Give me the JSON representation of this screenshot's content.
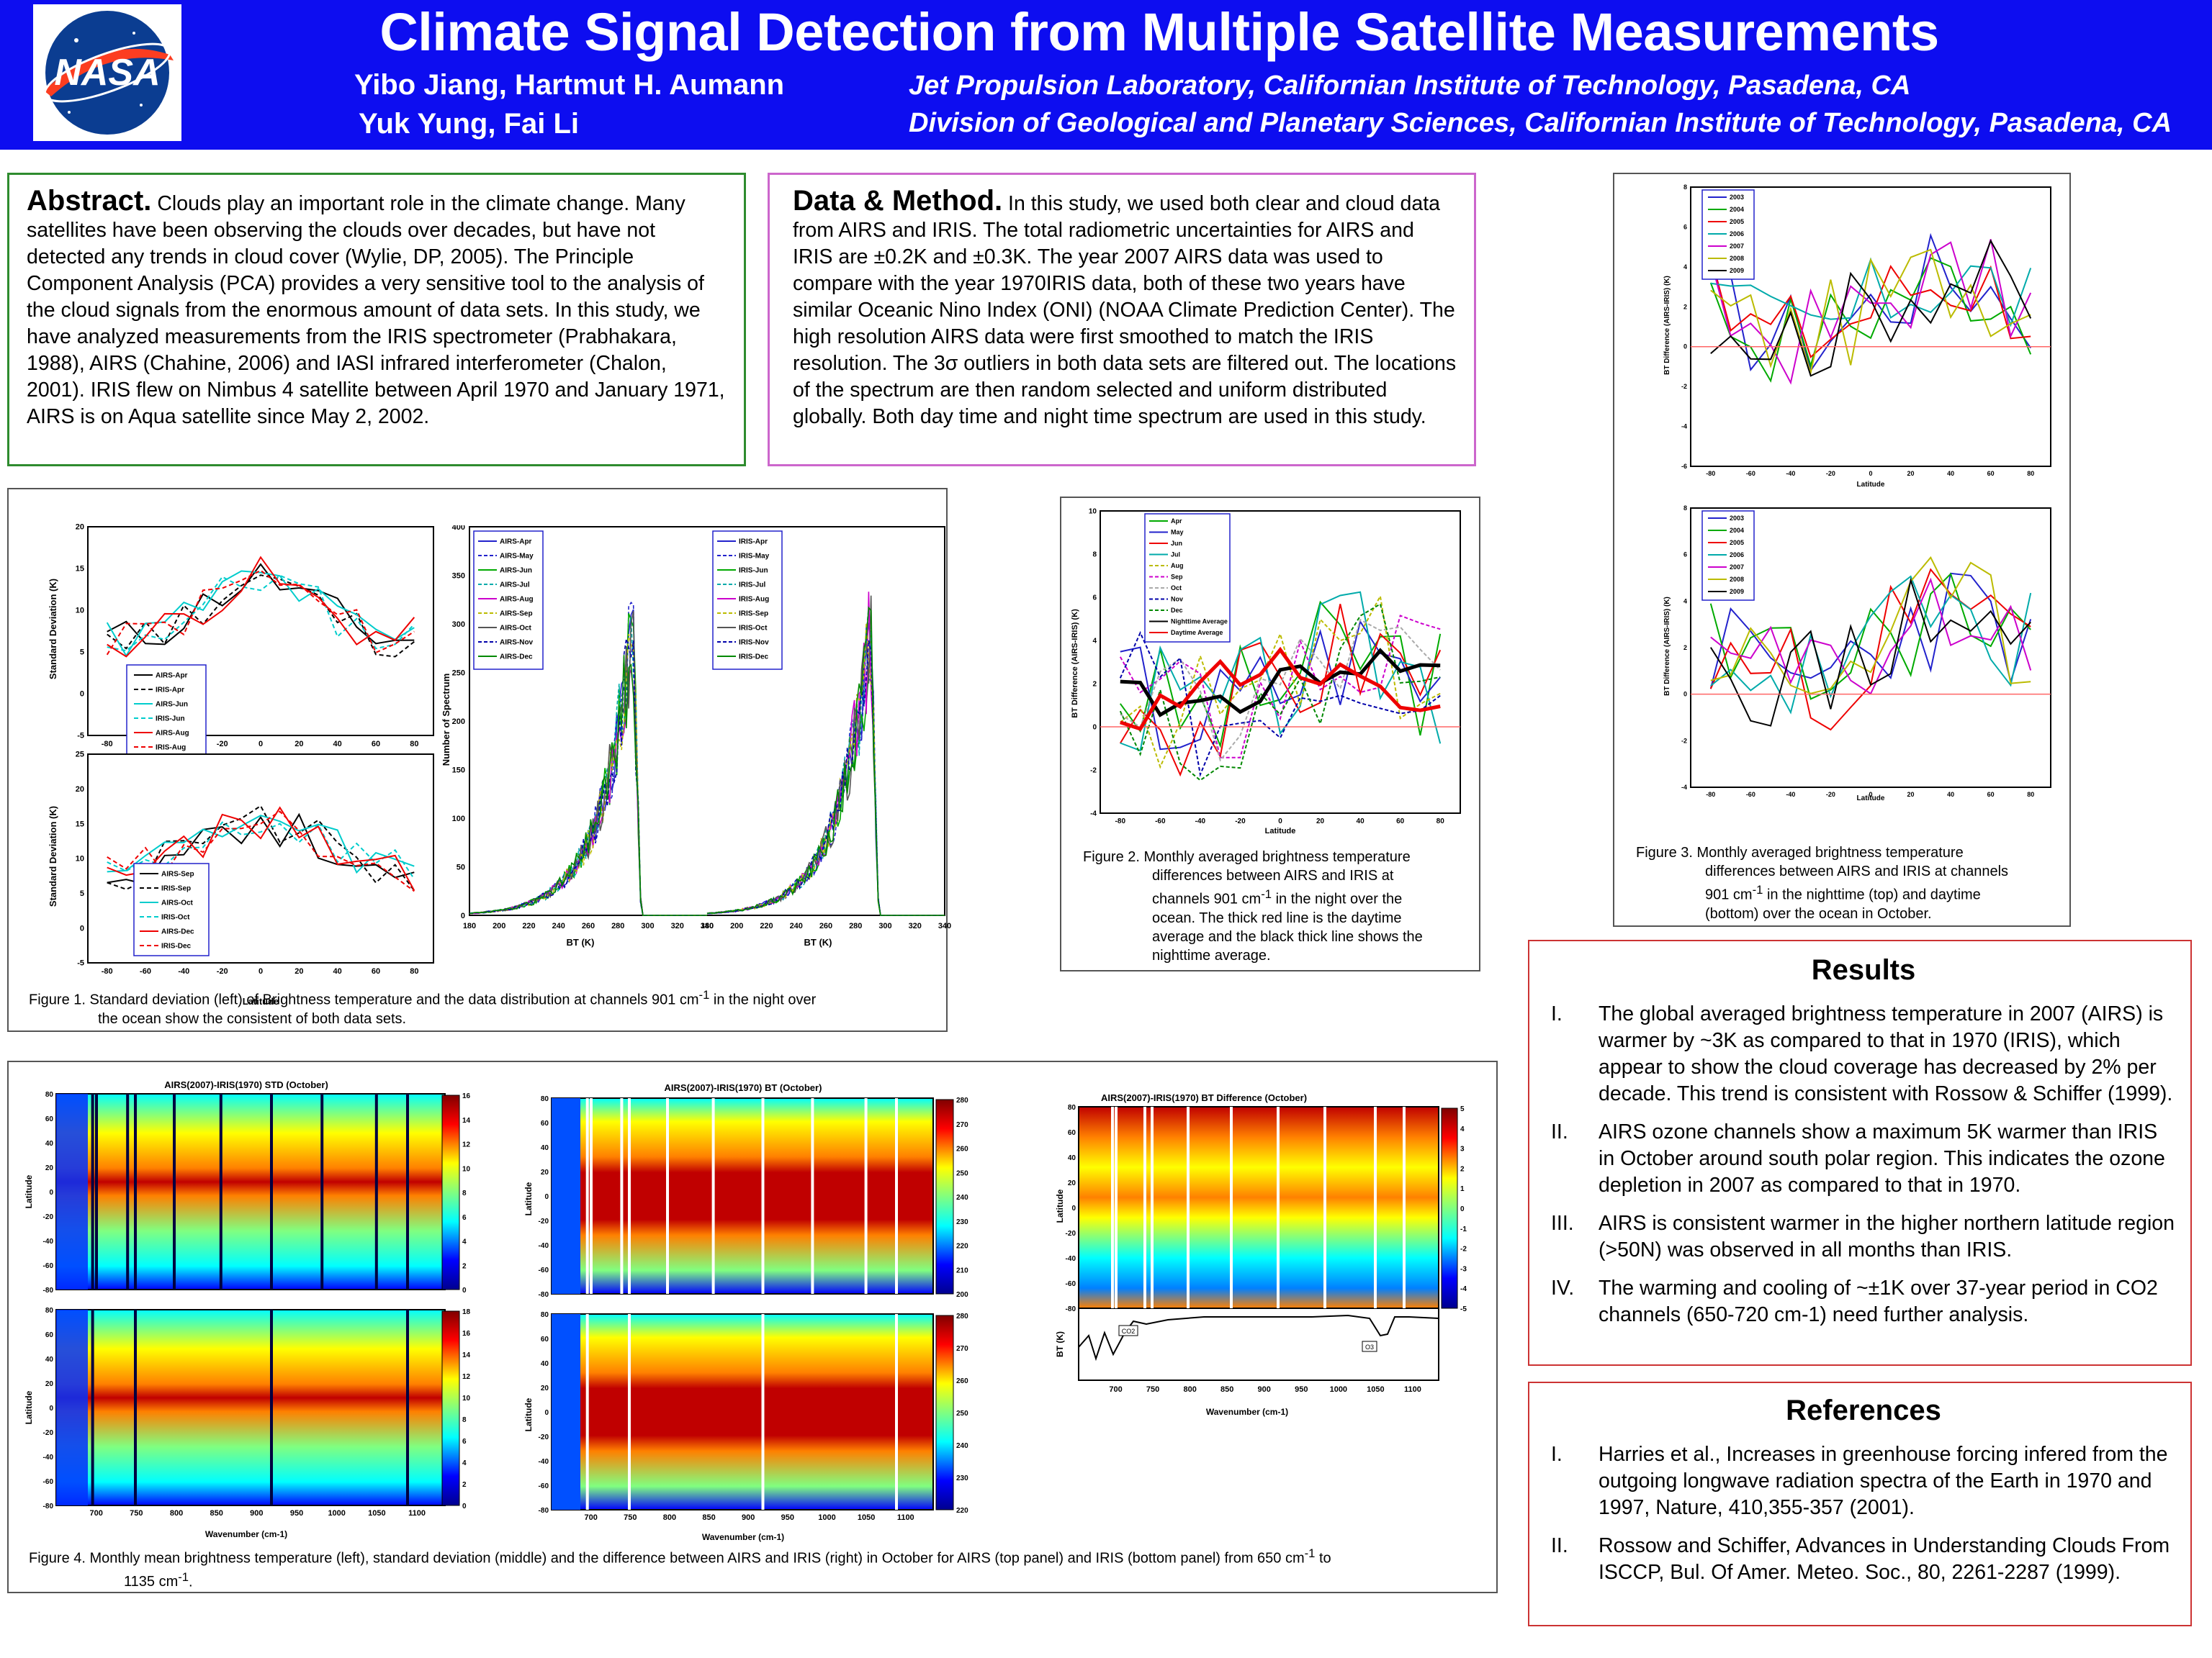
{
  "header": {
    "title": "Climate Signal Detection from Multiple Satellite Measurements",
    "authors_line1": "Yibo Jiang, Hartmut H. Aumann",
    "authors_line2": "Yuk Yung, Fai Li",
    "affiliation_line1": "Jet Propulsion Laboratory, Californian Institute of Technology, Pasadena, CA",
    "affiliation_line2": "Division of Geological and Planetary Sciences, Californian Institute of Technology, Pasadena, CA",
    "logo_text": "NASA"
  },
  "abstract": {
    "heading": "Abstract.",
    "text": "Clouds play an important role in the climate change. Many satellites have been observing the clouds over decades, but have not detected any trends in cloud cover (Wylie, DP, 2005). The Principle Component Analysis (PCA) provides a very sensitive tool to the analysis of the cloud signals from the enormous amount of data sets. In this study, we have analyzed measurements from the IRIS spectrometer (Prabhakara, 1988), AIRS (Chahine, 2006) and IASI infrared interferometer (Chalon, 2001). IRIS flew on Nimbus 4 satellite between April 1970 and January 1971, AIRS is on Aqua satellite since May 2, 2002."
  },
  "data_method": {
    "heading": "Data & Method.",
    "text": "In this study, we used both clear and cloud data from AIRS and IRIS. The total radiometric uncertainties for AIRS and IRIS are ±0.2K and ±0.3K. The year 2007 AIRS data was used to compare with the year 1970IRIS data, both of these two years have similar Oceanic Nino Index (ONI) (NOAA Climate Prediction Center). The high resolution AIRS data were first smoothed to match the IRIS resolution. The 3σ outliers in both data sets are filtered out. The locations of the spectrum are then random selected and uniform distributed globally. Both day time and night time spectrum are used in this study."
  },
  "figure1": {
    "caption_a": "Figure 1. Standard deviation (left) of Brightness temperature and the data distribution at channels 901 cm",
    "caption_sup": "-1",
    "caption_b": " in the night over",
    "caption_c": "the ocean show the consistent of both data sets.",
    "sd_ylabel": "Standard Deviation (K)",
    "lat_xlabel": "Latitude",
    "legend_top": [
      "AIRS-Apr",
      "IRIS-Apr",
      "AIRS-Jun",
      "IRIS-Jun",
      "AIRS-Aug",
      "IRIS-Aug"
    ],
    "legend_bottom": [
      "AIRS-Sep",
      "IRIS-Sep",
      "AIRS-Oct",
      "IRIS-Oct",
      "AIRS-Dec",
      "IRIS-Dec"
    ],
    "hist_ylabel": "Number of Spectrum",
    "hist_xlabel": "BT (K)",
    "legend_airs": [
      "AIRS-Apr",
      "AIRS-May",
      "AIRS-Jun",
      "AIRS-Jul",
      "AIRS-Aug",
      "AIRS-Sep",
      "AIRS-Oct",
      "AIRS-Nov",
      "AIRS-Dec"
    ],
    "legend_iris": [
      "IRIS-Apr",
      "IRIS-May",
      "IRIS-Jun",
      "IRIS-Jul",
      "IRIS-Aug",
      "IRIS-Sep",
      "IRIS-Oct",
      "IRIS-Nov",
      "IRIS-Dec"
    ]
  },
  "figure2": {
    "caption_a": "Figure 2. Monthly averaged brightness temperature",
    "caption_b": "differences between AIRS and IRIS at",
    "caption_c": "channels 901 cm",
    "caption_c2": " in the night over the",
    "caption_d": "ocean. The thick red line is the daytime",
    "caption_e": "average and the black thick line shows the",
    "caption_f": "nighttime average.",
    "sup": "-1",
    "ylabel": "BT Difference (AIRS-IRIS) (K)",
    "xlabel": "Latitude",
    "legend": [
      "Apr",
      "May",
      "Jun",
      "Jul",
      "Aug",
      "Sep",
      "Oct",
      "Nov",
      "Dec",
      "Nighttime Average",
      "Daytime Average"
    ]
  },
  "figure3": {
    "caption_a": "Figure 3. Monthly averaged brightness temperature",
    "caption_b": "differences between AIRS and IRIS at channels",
    "caption_c": "901 cm",
    "caption_c2": " in the nighttime (top) and daytime",
    "caption_d": "(bottom) over the ocean in October.",
    "sup": "-1",
    "ylabel": "BT Difference (AIRS-IRIS) (K)",
    "xlabel": "Latitude",
    "legend": [
      "2003",
      "2004",
      "2005",
      "2006",
      "2007",
      "2008",
      "2009"
    ]
  },
  "figure4": {
    "caption_a": "Figure 4. Monthly mean brightness temperature (left), standard deviation (middle) and the difference between AIRS and IRIS (right) in October for AIRS (top panel) and IRIS (bottom panel) from 650 cm",
    "caption_sup": "-1",
    "caption_b": " to",
    "caption_c": "1135 cm",
    "caption_d": ".",
    "title_left": "AIRS(2007)-IRIS(1970) STD (October)",
    "title_mid": "AIRS(2007)-IRIS(1970) BT (October)",
    "title_right": "AIRS(2007)-IRIS(1970) BT Difference (October)",
    "ylabel": "Latitude",
    "xlabel": "Wavenumber (cm-1)",
    "bt_ylabel": "BT (K)",
    "co2_label": "CO2",
    "o3_label": "O3"
  },
  "results": {
    "heading": "Results",
    "items": [
      {
        "num": "I.",
        "text": "The global averaged brightness temperature in 2007 (AIRS) is warmer by ~3K as compared to that in 1970 (IRIS), which appear to show the cloud coverage has decreased by 2% per decade. This trend is consistent with Rossow & Schiffer (1999)."
      },
      {
        "num": "II.",
        "text": "AIRS ozone channels show a maximum 5K warmer than IRIS in October around south polar region. This indicates the ozone depletion in 2007 as compared to that in 1970."
      },
      {
        "num": "III.",
        "text": " AIRS is consistent warmer in the higher northern latitude region (>50N) was observed in all months than IRIS."
      },
      {
        "num": "IV.",
        "text": "The warming and cooling of ~±1K over 37-year period in CO2 channels (650-720 cm-1)  need further analysis."
      }
    ]
  },
  "references": {
    "heading": "References",
    "items": [
      {
        "num": "I.",
        "text": "Harries et al., Increases in greenhouse forcing infered from the outgoing longwave radiation spectra of the Earth in 1970 and 1997, Nature, 410,355-357 (2001)."
      },
      {
        "num": "II.",
        "text": "Rossow and Schiffer, Advances in Understanding Clouds From ISCCP, Bul. Of Amer. Meteo. Soc., 80, 2261-2287 (1999)."
      }
    ]
  },
  "colors": {
    "banner": "#0d0df0",
    "abstract_border": "#2e8b2e",
    "method_border": "#cc66cc",
    "figure_border": "#555555",
    "results_border": "#cc3333"
  }
}
